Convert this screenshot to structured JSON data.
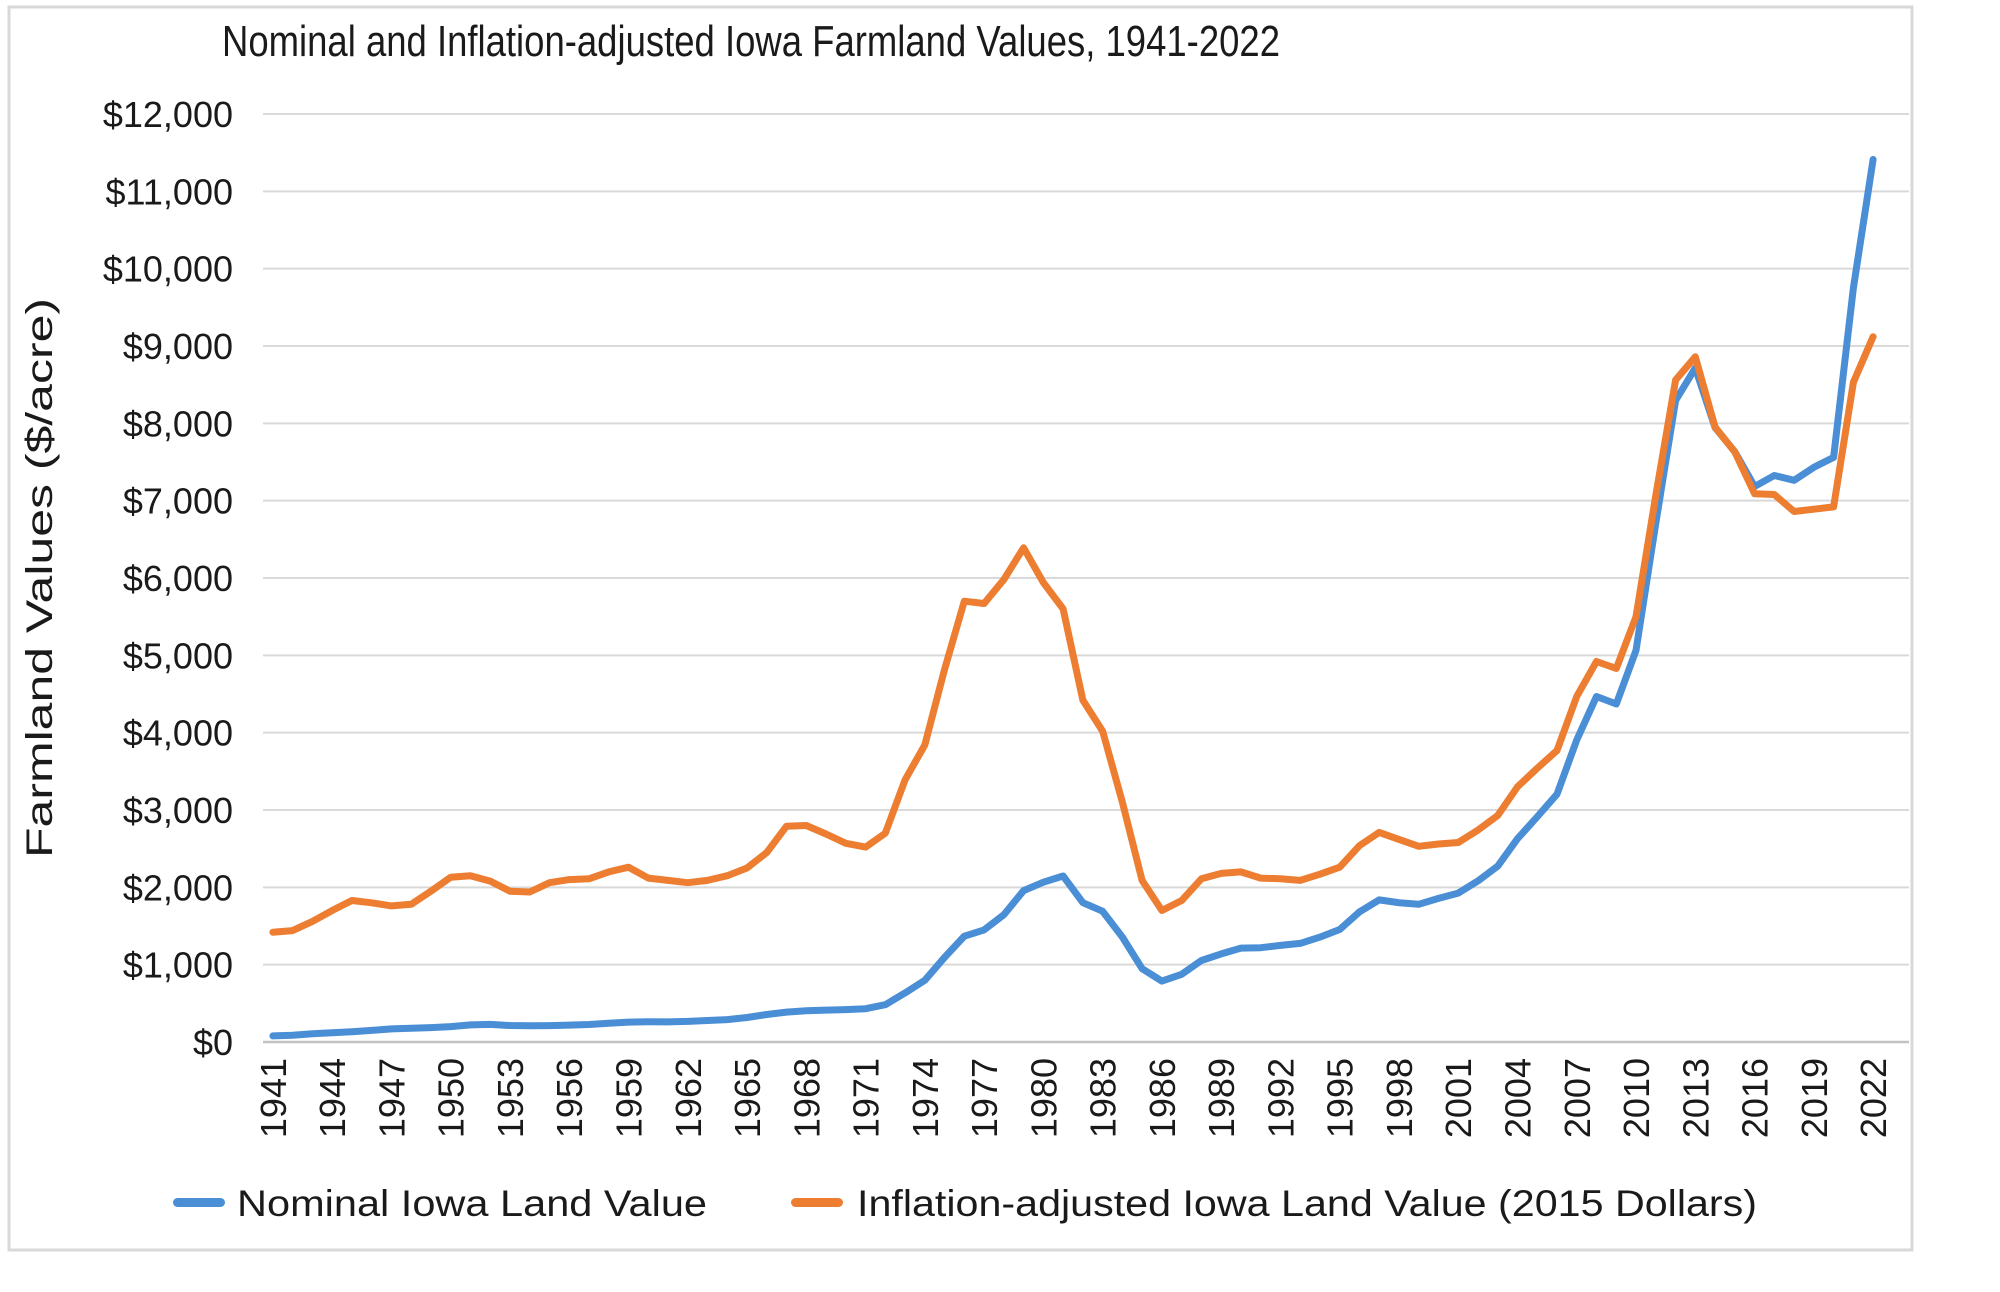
{
  "title": "Nominal and Inflation-adjusted Iowa Farmland Values, 1941-2022",
  "y_axis": {
    "title": "Farmland Values ($/acre)",
    "tick_labels_top_down": [
      "$12,000",
      "$11,000",
      "$10,000",
      "$9,000",
      "$8,000",
      "$7,000",
      "$6,000",
      "$5,000",
      "$4,000",
      "$3,000",
      "$2,000",
      "$1,000",
      "$0"
    ]
  },
  "x_axis": {
    "tick_labels": [
      "1941",
      "1944",
      "1947",
      "1950",
      "1953",
      "1956",
      "1959",
      "1962",
      "1965",
      "1968",
      "1971",
      "1974",
      "1977",
      "1980",
      "1983",
      "1986",
      "1989",
      "1992",
      "1995",
      "1998",
      "2001",
      "2004",
      "2007",
      "2010",
      "2013",
      "2016",
      "2019",
      "2022"
    ]
  },
  "legend": {
    "items": [
      {
        "label": "Nominal Iowa Land Value",
        "color": "#4A8ED5"
      },
      {
        "label": "Inflation-adjusted Iowa Land Value (2015 Dollars)",
        "color": "#ED7D31"
      }
    ]
  },
  "colors": {
    "nominal_line": "#4A8ED5",
    "inflation_line": "#ED7D31",
    "gridline": "#D9D9D9",
    "axis_line": "#C2C2C2",
    "chart_border": "#D9D9D9",
    "text": "#1A1A1A",
    "background": "#FFFFFF"
  },
  "chart_data": {
    "type": "line",
    "title": "Nominal and Inflation-adjusted Iowa Farmland Values, 1941-2022",
    "xlabel": "",
    "ylabel": "Farmland Values ($/acre)",
    "ylim": [
      0,
      12000
    ],
    "y_tick_step": 1000,
    "x_tick_every_years": 3,
    "grid": true,
    "legend_position": "bottom",
    "x": [
      1941,
      1942,
      1943,
      1944,
      1945,
      1946,
      1947,
      1948,
      1949,
      1950,
      1951,
      1952,
      1953,
      1954,
      1955,
      1956,
      1957,
      1958,
      1959,
      1960,
      1961,
      1962,
      1963,
      1964,
      1965,
      1966,
      1967,
      1968,
      1969,
      1970,
      1971,
      1972,
      1973,
      1974,
      1975,
      1976,
      1977,
      1978,
      1979,
      1980,
      1981,
      1982,
      1983,
      1984,
      1985,
      1986,
      1987,
      1988,
      1989,
      1990,
      1991,
      1992,
      1993,
      1994,
      1995,
      1996,
      1997,
      1998,
      1999,
      2000,
      2001,
      2002,
      2003,
      2004,
      2005,
      2006,
      2007,
      2008,
      2009,
      2010,
      2011,
      2012,
      2013,
      2014,
      2015,
      2016,
      2017,
      2018,
      2019,
      2020,
      2021,
      2022
    ],
    "series": [
      {
        "name": "Nominal Iowa Land Value",
        "color": "#4A8ED5",
        "values": [
          79,
          87,
          106,
          120,
          133,
          150,
          169,
          179,
          186,
          199,
          221,
          227,
          213,
          209,
          212,
          219,
          226,
          242,
          257,
          261,
          260,
          267,
          278,
          290,
          317,
          355,
          386,
          403,
          412,
          419,
          430,
          482,
          635,
          798,
          1095,
          1368,
          1450,
          1646,
          1958,
          2066,
          2147,
          1801,
          1691,
          1357,
          948,
          787,
          875,
          1054,
          1139,
          1214,
          1219,
          1249,
          1275,
          1356,
          1455,
          1682,
          1837,
          1801,
          1781,
          1857,
          1926,
          2083,
          2275,
          2629,
          2914,
          3204,
          3908,
          4468,
          4371,
          5064,
          6708,
          8296,
          8716,
          7943,
          7633,
          7183,
          7326,
          7264,
          7432,
          7559,
          9751,
          11411
        ]
      },
      {
        "name": "Inflation-adjusted Iowa Land Value (2015 Dollars)",
        "color": "#ED7D31",
        "values": [
          1420,
          1440,
          1560,
          1700,
          1830,
          1800,
          1760,
          1780,
          1950,
          2130,
          2150,
          2080,
          1950,
          1940,
          2060,
          2100,
          2110,
          2200,
          2260,
          2120,
          2090,
          2060,
          2090,
          2150,
          2250,
          2450,
          2790,
          2800,
          2690,
          2570,
          2520,
          2700,
          3390,
          3840,
          4820,
          5700,
          5670,
          5980,
          6390,
          5940,
          5600,
          4420,
          4020,
          3100,
          2090,
          1700,
          1830,
          2110,
          2180,
          2200,
          2120,
          2110,
          2090,
          2170,
          2260,
          2540,
          2710,
          2620,
          2530,
          2560,
          2580,
          2740,
          2930,
          3300,
          3540,
          3770,
          4470,
          4920,
          4830,
          5500,
          7070,
          8560,
          8860,
          7950,
          7630,
          7090,
          7080,
          6860,
          6890,
          6920,
          8530,
          9120
        ]
      }
    ]
  }
}
